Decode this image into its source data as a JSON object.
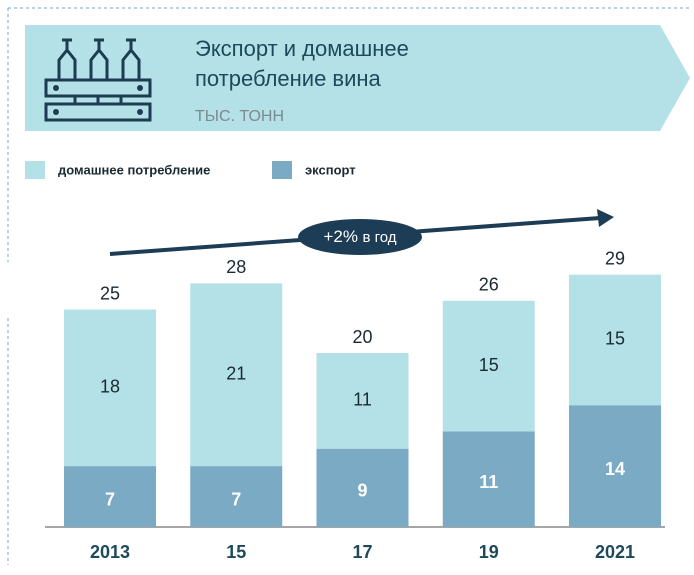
{
  "chart_data": {
    "type": "stacked-bar",
    "title": [
      "Экспорт и домашнее",
      "потребление вина"
    ],
    "subtitle": "ТЫС. ТОНН",
    "annotation": [
      "+2%",
      "в год"
    ],
    "categories": [
      "2013",
      "15",
      "17",
      "19",
      "2021"
    ],
    "series": [
      {
        "name": "экспорт",
        "color": "#7aaac4",
        "values": [
          7,
          7,
          9,
          11,
          14
        ]
      },
      {
        "name": "домашнее потребление",
        "color": "#b3e1e7",
        "values": [
          18,
          21,
          11,
          15,
          15
        ]
      }
    ],
    "totals": [
      25,
      28,
      20,
      26,
      29
    ]
  }
}
